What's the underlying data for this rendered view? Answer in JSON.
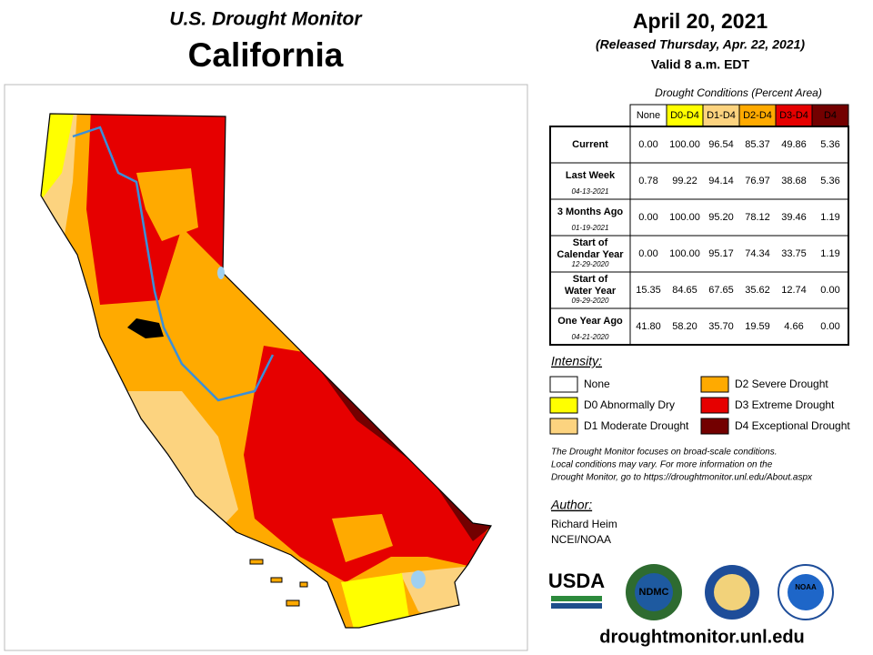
{
  "header": {
    "title": "U.S. Drought Monitor",
    "region": "California",
    "date": "April 20, 2021",
    "released": "(Released Thursday, Apr. 22, 2021)",
    "valid": "Valid 8 a.m. EDT"
  },
  "table": {
    "caption": "Drought Conditions (Percent Area)",
    "columns": [
      "None",
      "D0-D4",
      "D1-D4",
      "D2-D4",
      "D3-D4",
      "D4"
    ],
    "column_colors": [
      "#ffffff",
      "#ffff00",
      "#fcd37f",
      "#ffaa00",
      "#e60000",
      "#730000"
    ],
    "rows": [
      {
        "label": "Current",
        "values": [
          "0.00",
          "100.00",
          "96.54",
          "85.37",
          "49.86",
          "5.36"
        ]
      },
      {
        "label": "Last Week",
        "date": "04-13-2021",
        "values": [
          "0.78",
          "99.22",
          "94.14",
          "76.97",
          "38.68",
          "5.36"
        ]
      },
      {
        "label": "3 Months Ago",
        "date": "01-19-2021",
        "values": [
          "0.00",
          "100.00",
          "95.20",
          "78.12",
          "39.46",
          "1.19"
        ]
      },
      {
        "label": "Start of Calendar Year",
        "date": "12-29-2020",
        "values": [
          "0.00",
          "100.00",
          "95.17",
          "74.34",
          "33.75",
          "1.19"
        ]
      },
      {
        "label": "Start of Water Year",
        "date": "09-29-2020",
        "values": [
          "15.35",
          "84.65",
          "67.65",
          "35.62",
          "12.74",
          "0.00"
        ]
      },
      {
        "label": "One Year Ago",
        "date": "04-21-2020",
        "values": [
          "41.80",
          "58.20",
          "35.70",
          "19.59",
          "4.66",
          "0.00"
        ]
      }
    ]
  },
  "legend": {
    "title": "Intensity:",
    "items": [
      {
        "label": "None",
        "color": "#ffffff"
      },
      {
        "label": "D0 Abnormally Dry",
        "color": "#ffff00"
      },
      {
        "label": "D1 Moderate Drought",
        "color": "#fcd37f"
      },
      {
        "label": "D2 Severe Drought",
        "color": "#ffaa00"
      },
      {
        "label": "D3 Extreme Drought",
        "color": "#e60000"
      },
      {
        "label": "D4 Exceptional Drought",
        "color": "#730000"
      }
    ]
  },
  "note": [
    "The Drought Monitor focuses on broad-scale conditions.",
    "Local conditions may vary. For more information on the",
    "Drought Monitor, go to https://droughtmonitor.unl.edu/About.aspx"
  ],
  "author": {
    "title": "Author:",
    "lines": [
      "Richard Heim",
      "NCEI/NOAA"
    ]
  },
  "logos": [
    "USDA",
    "NDMC",
    "NOAA"
  ],
  "footer": "droughtmonitor.unl.edu"
}
